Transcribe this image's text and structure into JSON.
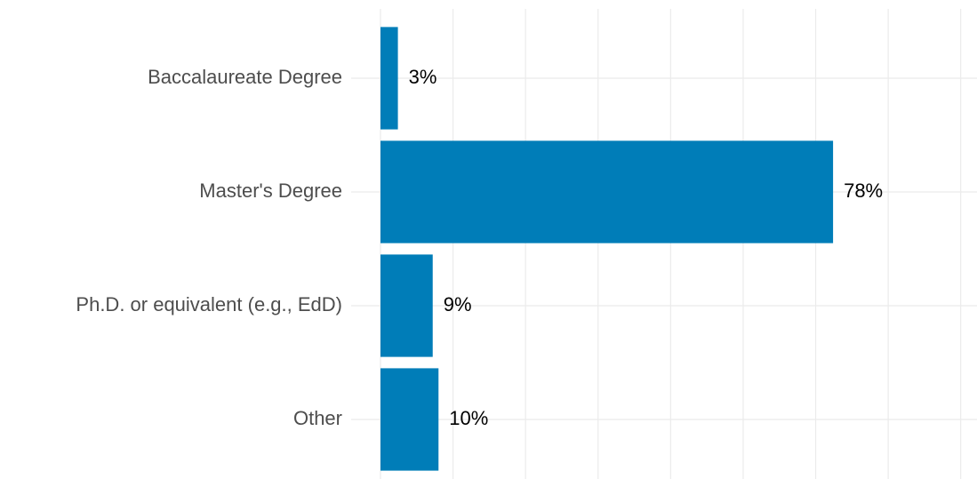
{
  "chart_data": {
    "type": "bar",
    "orientation": "horizontal",
    "categories": [
      "Baccalaureate Degree",
      "Master's Degree",
      "Ph.D. or equivalent (e.g., EdD)",
      "Other"
    ],
    "values": [
      3,
      78,
      9,
      10
    ],
    "value_labels": [
      "3%",
      "78%",
      "9%",
      "10%"
    ],
    "color": "#007db8",
    "xlim": [
      0,
      102.5
    ],
    "xticks": [
      0,
      12.5,
      25,
      37.5,
      50,
      62.5,
      75,
      87.5,
      100
    ],
    "grid": true
  }
}
